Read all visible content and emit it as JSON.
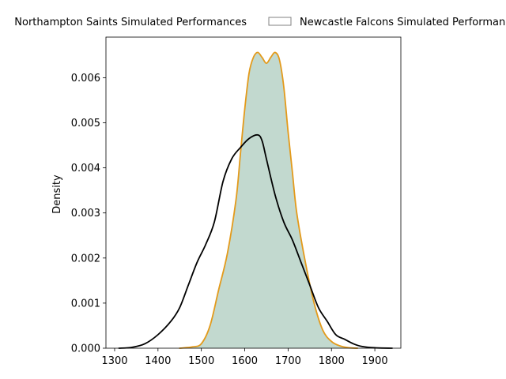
{
  "chart_data": {
    "type": "area",
    "title": "",
    "xlabel": "",
    "ylabel": "Density",
    "xlim": [
      1280,
      1960
    ],
    "ylim": [
      0,
      0.0069
    ],
    "xticks": [
      1300,
      1400,
      1500,
      1600,
      1700,
      1800,
      1900
    ],
    "xtick_labels": [
      "1300",
      "1400",
      "1500",
      "1600",
      "1700",
      "1800",
      "1900"
    ],
    "yticks": [
      0,
      0.001,
      0.002,
      0.003,
      0.004,
      0.005,
      0.006
    ],
    "ytick_labels": [
      "0.000",
      "0.001",
      "0.002",
      "0.003",
      "0.004",
      "0.005",
      "0.006"
    ],
    "grid": false,
    "legend_placement": "top-center, outside",
    "legend": [
      {
        "label": "Northampton Saints Simulated Performances",
        "series_index": 0
      },
      {
        "label": "Newcastle Falcons Simulated Performances",
        "series_index": 1
      }
    ],
    "series": [
      {
        "name": "Northampton Saints Simulated Performances",
        "fill": false,
        "line_color": "#000000",
        "x": [
          1310,
          1340,
          1370,
          1400,
          1430,
          1450,
          1470,
          1490,
          1510,
          1530,
          1550,
          1570,
          1590,
          1610,
          1630,
          1640,
          1650,
          1670,
          1690,
          1710,
          1730,
          1750,
          1770,
          1790,
          1810,
          1830,
          1850,
          1870,
          1900,
          1940
        ],
        "y": [
          0.0,
          2e-05,
          0.0001,
          0.0003,
          0.0006,
          0.0009,
          0.0014,
          0.0019,
          0.0023,
          0.0028,
          0.0037,
          0.0042,
          0.00445,
          0.00465,
          0.00473,
          0.0046,
          0.0042,
          0.0034,
          0.0028,
          0.0024,
          0.0019,
          0.0014,
          0.0009,
          0.0006,
          0.0003,
          0.0002,
          0.0001,
          4e-05,
          1e-05,
          0.0
        ]
      },
      {
        "name": "Newcastle Falcons Simulated Performances",
        "fill": true,
        "fill_color": "#c2d9cf",
        "legend_edge": "#808080",
        "line_color": "#e39a1b",
        "x": [
          1450,
          1480,
          1500,
          1520,
          1540,
          1560,
          1580,
          1590,
          1600,
          1610,
          1620,
          1630,
          1640,
          1650,
          1660,
          1670,
          1680,
          1690,
          1700,
          1710,
          1720,
          1740,
          1760,
          1780,
          1800,
          1820,
          1840,
          1860
        ],
        "y": [
          0.0,
          3e-05,
          0.0001,
          0.0005,
          0.0013,
          0.0021,
          0.0033,
          0.0043,
          0.0053,
          0.0061,
          0.00645,
          0.00656,
          0.00645,
          0.00632,
          0.00645,
          0.00656,
          0.0064,
          0.0058,
          0.0048,
          0.0039,
          0.003,
          0.0019,
          0.001,
          0.0004,
          0.00015,
          5e-05,
          1e-05,
          0.0
        ]
      }
    ]
  }
}
